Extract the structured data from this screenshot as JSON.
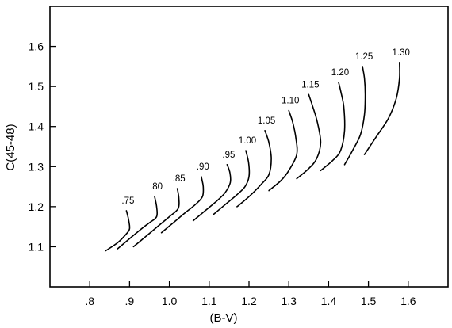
{
  "chart_data": {
    "type": "line",
    "xlabel": "(B-V)",
    "ylabel": "C(45-48)",
    "xlim": [
      0.7,
      1.7
    ],
    "ylim": [
      1.0,
      1.7
    ],
    "x_ticks": [
      {
        "value": 0.8,
        "label": ".8"
      },
      {
        "value": 0.9,
        "label": ".9"
      },
      {
        "value": 1.0,
        "label": "1.0"
      },
      {
        "value": 1.1,
        "label": "1.1"
      },
      {
        "value": 1.2,
        "label": "1.2"
      },
      {
        "value": 1.3,
        "label": "1.3"
      },
      {
        "value": 1.4,
        "label": "1.4"
      },
      {
        "value": 1.5,
        "label": "1.5"
      },
      {
        "value": 1.6,
        "label": "1.6"
      }
    ],
    "y_ticks": [
      {
        "value": 1.1,
        "label": "1.1"
      },
      {
        "value": 1.2,
        "label": "1.2"
      },
      {
        "value": 1.3,
        "label": "1.3"
      },
      {
        "value": 1.4,
        "label": "1.4"
      },
      {
        "value": 1.5,
        "label": "1.5"
      },
      {
        "value": 1.6,
        "label": "1.6"
      }
    ],
    "grid": false,
    "series": [
      {
        "name": ".75",
        "points": [
          [
            0.84,
            1.09
          ],
          [
            0.87,
            1.11
          ],
          [
            0.89,
            1.13
          ],
          [
            0.9,
            1.145
          ],
          [
            0.897,
            1.17
          ],
          [
            0.892,
            1.19
          ]
        ]
      },
      {
        "name": ".80",
        "points": [
          [
            0.87,
            1.095
          ],
          [
            0.9,
            1.12
          ],
          [
            0.93,
            1.145
          ],
          [
            0.95,
            1.16
          ],
          [
            0.968,
            1.175
          ],
          [
            0.968,
            1.2
          ],
          [
            0.963,
            1.225
          ]
        ]
      },
      {
        "name": ".85",
        "points": [
          [
            0.91,
            1.1
          ],
          [
            0.94,
            1.125
          ],
          [
            0.97,
            1.15
          ],
          [
            1.0,
            1.175
          ],
          [
            1.022,
            1.195
          ],
          [
            1.024,
            1.22
          ],
          [
            1.02,
            1.245
          ]
        ]
      },
      {
        "name": ".90",
        "points": [
          [
            0.98,
            1.135
          ],
          [
            1.01,
            1.16
          ],
          [
            1.04,
            1.185
          ],
          [
            1.065,
            1.205
          ],
          [
            1.083,
            1.225
          ],
          [
            1.085,
            1.25
          ],
          [
            1.08,
            1.275
          ]
        ]
      },
      {
        "name": ".95",
        "points": [
          [
            1.06,
            1.165
          ],
          [
            1.09,
            1.19
          ],
          [
            1.12,
            1.215
          ],
          [
            1.14,
            1.235
          ],
          [
            1.153,
            1.26
          ],
          [
            1.152,
            1.285
          ],
          [
            1.145,
            1.305
          ]
        ]
      },
      {
        "name": "1.00",
        "points": [
          [
            1.11,
            1.18
          ],
          [
            1.14,
            1.205
          ],
          [
            1.17,
            1.23
          ],
          [
            1.19,
            1.25
          ],
          [
            1.2,
            1.275
          ],
          [
            1.199,
            1.31
          ],
          [
            1.192,
            1.34
          ]
        ]
      },
      {
        "name": "1.05",
        "points": [
          [
            1.17,
            1.2
          ],
          [
            1.2,
            1.225
          ],
          [
            1.23,
            1.255
          ],
          [
            1.25,
            1.28
          ],
          [
            1.256,
            1.32
          ],
          [
            1.25,
            1.36
          ],
          [
            1.24,
            1.39
          ]
        ]
      },
      {
        "name": "1.10",
        "points": [
          [
            1.25,
            1.24
          ],
          [
            1.28,
            1.265
          ],
          [
            1.3,
            1.29
          ],
          [
            1.32,
            1.33
          ],
          [
            1.318,
            1.37
          ],
          [
            1.31,
            1.41
          ],
          [
            1.3,
            1.44
          ]
        ]
      },
      {
        "name": "1.15",
        "points": [
          [
            1.32,
            1.27
          ],
          [
            1.35,
            1.295
          ],
          [
            1.37,
            1.32
          ],
          [
            1.38,
            1.36
          ],
          [
            1.372,
            1.41
          ],
          [
            1.36,
            1.45
          ],
          [
            1.35,
            1.48
          ]
        ]
      },
      {
        "name": "1.20",
        "points": [
          [
            1.38,
            1.29
          ],
          [
            1.41,
            1.315
          ],
          [
            1.43,
            1.34
          ],
          [
            1.44,
            1.39
          ],
          [
            1.438,
            1.45
          ],
          [
            1.43,
            1.49
          ],
          [
            1.425,
            1.51
          ]
        ]
      },
      {
        "name": "1.25",
        "points": [
          [
            1.44,
            1.305
          ],
          [
            1.46,
            1.34
          ],
          [
            1.48,
            1.38
          ],
          [
            1.49,
            1.43
          ],
          [
            1.492,
            1.48
          ],
          [
            1.49,
            1.52
          ],
          [
            1.485,
            1.55
          ]
        ]
      },
      {
        "name": "1.30",
        "points": [
          [
            1.49,
            1.33
          ],
          [
            1.52,
            1.375
          ],
          [
            1.55,
            1.42
          ],
          [
            1.57,
            1.47
          ],
          [
            1.578,
            1.52
          ],
          [
            1.578,
            1.56
          ]
        ]
      }
    ]
  }
}
